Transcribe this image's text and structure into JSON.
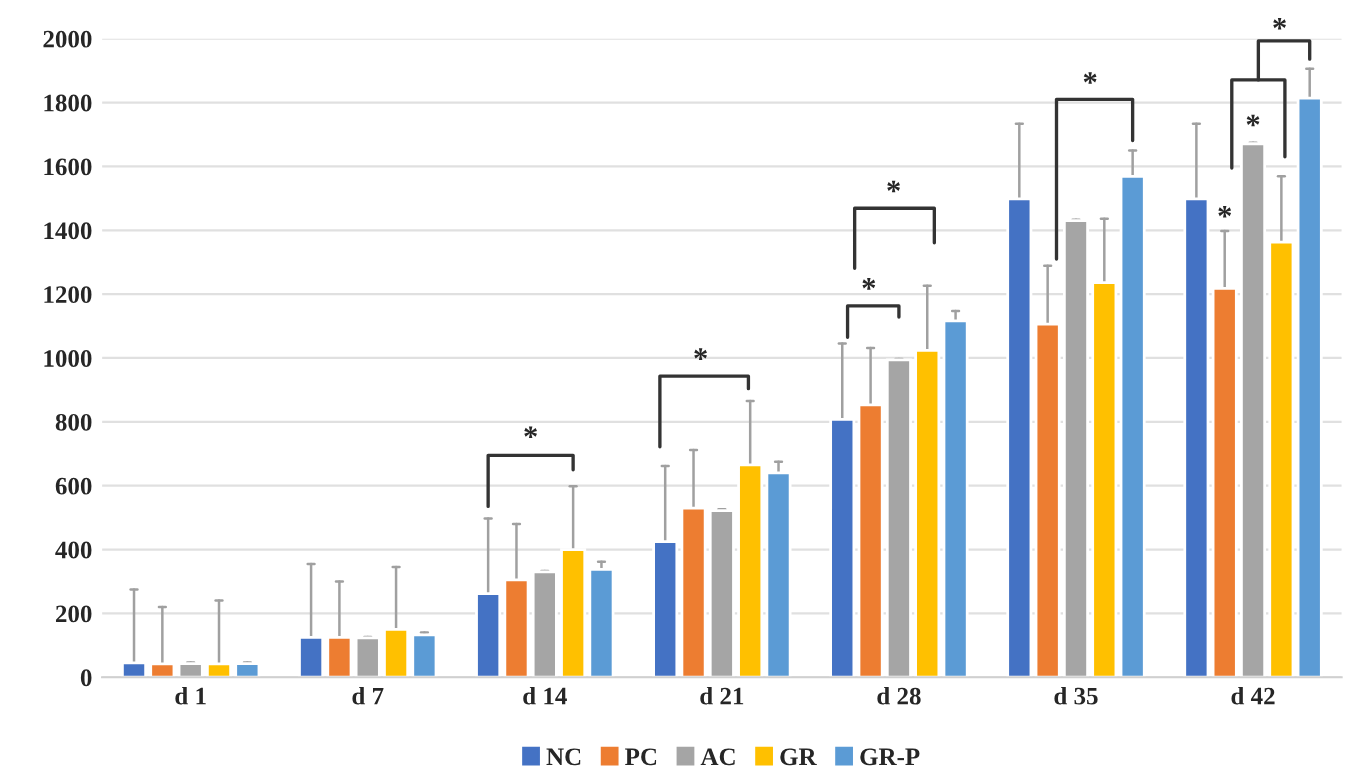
{
  "chart_data": {
    "type": "bar",
    "categories": [
      "d 1",
      "d 7",
      "d 14",
      "d 21",
      "d 28",
      "d 35",
      "d 42"
    ],
    "series": [
      {
        "name": "NC",
        "color": "#4472c4",
        "values": [
          45,
          125,
          262,
          425,
          808,
          1498,
          1498
        ],
        "errors": [
          [
            45,
            275
          ],
          [
            125,
            355
          ],
          [
            262,
            497
          ],
          [
            425,
            662
          ],
          [
            808,
            1045
          ],
          [
            1498,
            1734
          ],
          [
            1498,
            1734
          ]
        ]
      },
      {
        "name": "PC",
        "color": "#ed7d31",
        "values": [
          42,
          125,
          305,
          530,
          853,
          1106,
          1218
        ],
        "errors": [
          [
            42,
            220
          ],
          [
            125,
            300
          ],
          [
            305,
            480
          ],
          [
            530,
            712
          ],
          [
            853,
            1031
          ],
          [
            1106,
            1289
          ],
          [
            1218,
            1398
          ]
        ]
      },
      {
        "name": "AC",
        "color": "#a5a5a5",
        "values": [
          43,
          123,
          330,
          522,
          994,
          1430,
          1671
        ],
        "errors": [
          [
            43,
            46
          ],
          [
            123,
            126
          ],
          [
            330,
            333
          ],
          [
            522,
            526
          ],
          [
            994,
            997
          ],
          [
            1430,
            1433
          ],
          [
            1671,
            1674
          ]
        ]
      },
      {
        "name": "GR",
        "color": "#ffc000",
        "values": [
          42,
          150,
          400,
          665,
          1024,
          1236,
          1363
        ],
        "errors": [
          [
            42,
            240
          ],
          [
            150,
            345
          ],
          [
            400,
            598
          ],
          [
            665,
            865
          ],
          [
            1024,
            1226
          ],
          [
            1236,
            1436
          ],
          [
            1363,
            1569
          ]
        ]
      },
      {
        "name": "GR-P",
        "color": "#5b9bd5",
        "values": [
          43,
          133,
          338,
          640,
          1116,
          1569,
          1814
        ],
        "errors": [
          [
            43,
            46
          ],
          [
            133,
            140
          ],
          [
            338,
            362
          ],
          [
            640,
            675
          ],
          [
            1116,
            1147
          ],
          [
            1569,
            1650
          ],
          [
            1814,
            1906
          ]
        ]
      }
    ],
    "ylim": [
      0,
      2000
    ],
    "yticks": [
      0,
      200,
      400,
      600,
      800,
      1000,
      1200,
      1400,
      1600,
      1800,
      2000
    ],
    "grid": "y",
    "legend": "bottom",
    "annotations": [
      "*",
      "*",
      "*",
      "*",
      "*",
      "*",
      "*",
      "*"
    ]
  }
}
